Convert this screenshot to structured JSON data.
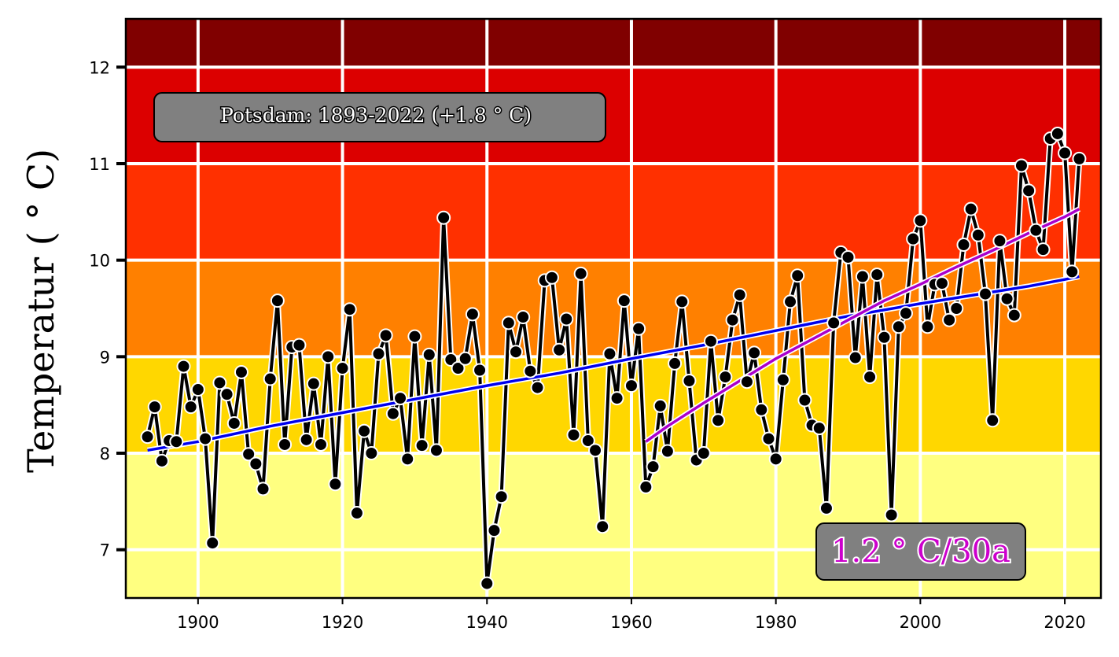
{
  "chart_data": {
    "type": "line",
    "ylabel": "Temperatur ( ° C)",
    "station_label": "Potsdam: 1893-2022 (+1.8 ° C)",
    "trend_label": "1.2 ° C/30a",
    "xlim": [
      1890,
      2025
    ],
    "ylim": [
      6.5,
      12.5
    ],
    "x_ticks": [
      1900,
      1920,
      1940,
      1960,
      1980,
      2000,
      2020
    ],
    "y_ticks": [
      7,
      8,
      9,
      10,
      11,
      12
    ],
    "grid": true,
    "bands": [
      {
        "from": 6.5,
        "to": 8,
        "color": "#ffff80"
      },
      {
        "from": 8,
        "to": 9,
        "color": "#ffd700"
      },
      {
        "from": 9,
        "to": 10,
        "color": "#ff8000"
      },
      {
        "from": 10,
        "to": 11,
        "color": "#ff3000"
      },
      {
        "from": 11,
        "to": 12,
        "color": "#dc0000"
      },
      {
        "from": 12,
        "to": 12.5,
        "color": "#800000"
      }
    ],
    "colors": {
      "annual": "#000000",
      "long_trend": "#0000ee",
      "recent_trend": "#aa00cc",
      "trend_text": "#cc00cc",
      "label_box": "#808080"
    },
    "series": [
      {
        "x": [
          1893,
          1894,
          1895,
          1896,
          1897,
          1898,
          1899,
          1900,
          1901,
          1902,
          1903,
          1904,
          1905,
          1906,
          1907,
          1908,
          1909,
          1910,
          1911,
          1912,
          1913,
          1914,
          1915,
          1916,
          1917,
          1918,
          1919,
          1920,
          1921,
          1922,
          1923,
          1924,
          1925,
          1926,
          1927,
          1928,
          1929,
          1930,
          1931,
          1932,
          1933,
          1934,
          1935,
          1936,
          1937,
          1938,
          1939,
          1940,
          1941,
          1942,
          1943,
          1944,
          1945,
          1946,
          1947,
          1948,
          1949,
          1950,
          1951,
          1952,
          1953,
          1954,
          1955,
          1956,
          1957,
          1958,
          1959,
          1960,
          1961,
          1962,
          1963,
          1964,
          1965,
          1966,
          1967,
          1968,
          1969,
          1970,
          1971,
          1972,
          1973,
          1974,
          1975,
          1976,
          1977,
          1978,
          1979,
          1980,
          1981,
          1982,
          1983,
          1984,
          1985,
          1986,
          1987,
          1988,
          1989,
          1990,
          1991,
          1992,
          1993,
          1994,
          1995,
          1996,
          1997,
          1998,
          1999,
          2000,
          2001,
          2002,
          2003,
          2004,
          2005,
          2006,
          2007,
          2008,
          2009,
          2010,
          2011,
          2012,
          2013,
          2014,
          2015,
          2016,
          2017,
          2018,
          2019,
          2020,
          2021,
          2022
        ],
        "values": [
          8.17,
          8.48,
          7.92,
          8.13,
          8.12,
          8.9,
          8.48,
          8.66,
          8.15,
          7.07,
          8.73,
          8.61,
          8.31,
          8.84,
          7.99,
          7.89,
          7.63,
          8.77,
          9.58,
          8.09,
          9.1,
          9.12,
          8.14,
          8.72,
          8.09,
          9.0,
          7.68,
          8.88,
          9.49,
          7.38,
          8.23,
          8.0,
          9.03,
          9.22,
          8.41,
          8.57,
          7.94,
          9.21,
          8.08,
          9.02,
          8.03,
          10.44,
          8.97,
          8.88,
          8.98,
          9.44,
          8.86,
          6.65,
          7.2,
          7.55,
          9.35,
          9.05,
          9.41,
          8.85,
          8.68,
          9.79,
          9.82,
          9.07,
          9.39,
          8.19,
          9.86,
          8.13,
          8.03,
          7.24,
          9.03,
          8.57,
          9.58,
          8.7,
          9.29,
          7.65,
          7.86,
          8.49,
          8.02,
          8.93,
          9.57,
          8.75,
          7.93,
          8.0,
          9.16,
          8.34,
          8.79,
          9.38,
          9.64,
          8.74,
          9.04,
          8.45,
          8.15,
          7.94,
          8.76,
          9.57,
          9.84,
          8.55,
          8.29,
          8.26,
          7.43,
          9.35,
          10.08,
          10.03,
          8.99,
          9.83,
          8.79,
          9.85,
          9.2,
          7.36,
          9.31,
          9.45,
          10.22,
          10.41,
          9.31,
          9.75,
          9.76,
          9.38,
          9.5,
          10.16,
          10.53,
          10.26,
          9.65,
          8.34,
          10.2,
          9.6,
          9.43,
          10.98,
          10.72,
          10.31,
          10.11,
          11.26,
          11.31,
          11.11,
          9.88,
          11.05
        ]
      },
      {
        "x": [
          1893,
          1900,
          1910,
          1920,
          1930,
          1940,
          1950,
          1960,
          1970,
          1980,
          1990,
          2000,
          2010,
          2015,
          2020,
          2022
        ],
        "values": [
          8.03,
          8.12,
          8.28,
          8.42,
          8.56,
          8.7,
          8.83,
          8.98,
          9.12,
          9.27,
          9.42,
          9.55,
          9.67,
          9.73,
          9.8,
          9.83
        ]
      },
      {
        "x": [
          1962,
          1965,
          1970,
          1975,
          1980,
          1985,
          1990,
          1995,
          2000,
          2005,
          2010,
          2015,
          2020,
          2022
        ],
        "values": [
          8.12,
          8.28,
          8.52,
          8.75,
          8.98,
          9.18,
          9.38,
          9.58,
          9.75,
          9.93,
          10.1,
          10.28,
          10.45,
          10.53
        ]
      }
    ]
  }
}
